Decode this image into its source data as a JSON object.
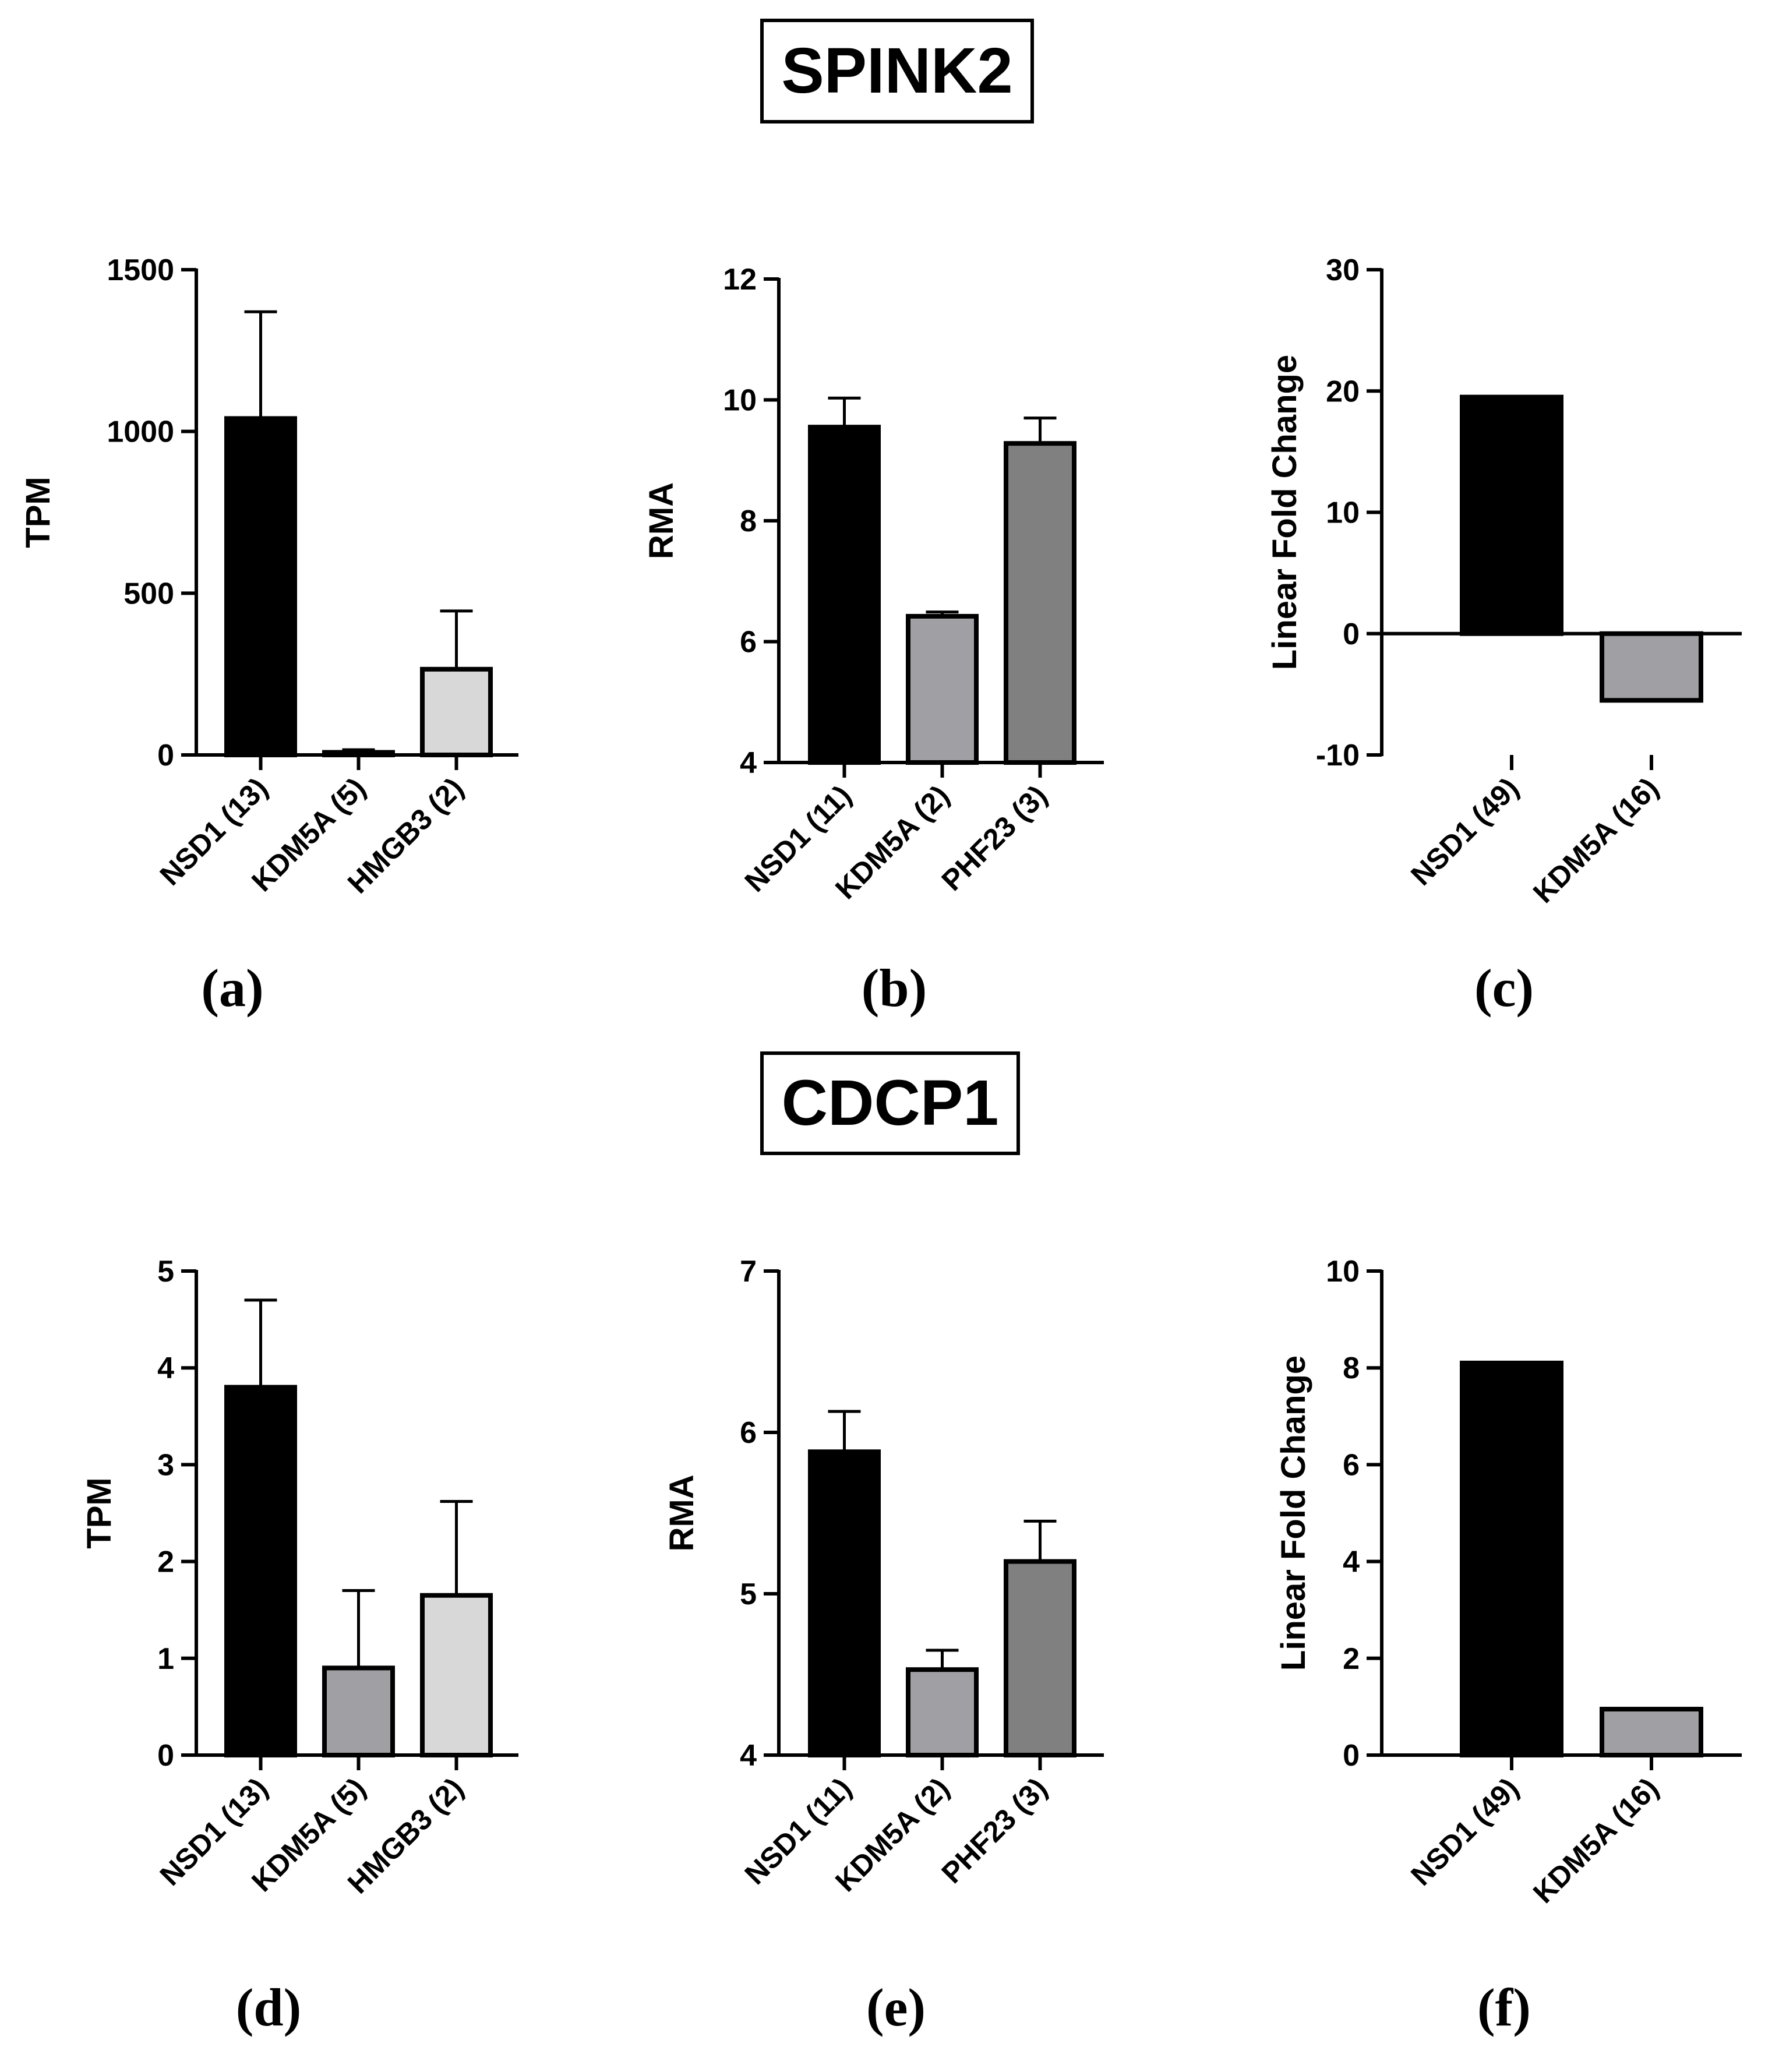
{
  "titles": {
    "top": "SPINK2",
    "bottom": "CDCP1"
  },
  "chart_data": [
    {
      "type": "bar",
      "panel": "(a)",
      "ylabel": "TPM",
      "ylim": [
        0,
        1500
      ],
      "yticks": [
        0,
        500,
        1000,
        1500
      ],
      "categories": [
        "NSD1 (13)",
        "KDM5A (5)",
        "HMGB3 (2)"
      ],
      "values": [
        1040,
        8,
        265
      ],
      "errors": [
        330,
        8,
        180
      ],
      "colors": [
        "#000000",
        "#a0a0a4",
        "#d8d8d8"
      ]
    },
    {
      "type": "bar",
      "panel": "(b)",
      "ylabel": "RMA",
      "ylim": [
        4,
        12
      ],
      "yticks": [
        4,
        6,
        8,
        10,
        12
      ],
      "categories": [
        "NSD1 (11)",
        "KDM5A (2)",
        "PHF23 (3)"
      ],
      "values": [
        9.55,
        6.42,
        9.28
      ],
      "errors": [
        0.48,
        0.07,
        0.42
      ],
      "colors": [
        "#000000",
        "#a0a0a4",
        "#808080"
      ]
    },
    {
      "type": "bar",
      "panel": "(c)",
      "ylabel": "Linear Fold Change",
      "ylim": [
        -10,
        30
      ],
      "yticks": [
        -10,
        0,
        10,
        20,
        30
      ],
      "categories": [
        "NSD1 (49)",
        "KDM5A (16)"
      ],
      "values": [
        19.5,
        -5.5
      ],
      "errors": [
        0,
        0
      ],
      "colors": [
        "#000000",
        "#a0a0a4"
      ]
    },
    {
      "type": "bar",
      "panel": "(d)",
      "ylabel": "TPM",
      "ylim": [
        0,
        5
      ],
      "yticks": [
        0,
        1,
        2,
        3,
        4,
        5
      ],
      "categories": [
        "NSD1 (13)",
        "KDM5A (5)",
        "HMGB3 (2)"
      ],
      "values": [
        3.8,
        0.9,
        1.65
      ],
      "errors": [
        0.9,
        0.8,
        0.97
      ],
      "colors": [
        "#000000",
        "#a0a0a4",
        "#d8d8d8"
      ]
    },
    {
      "type": "bar",
      "panel": "(e)",
      "ylabel": "RMA",
      "ylim": [
        4,
        7
      ],
      "yticks": [
        4,
        5,
        6,
        7
      ],
      "categories": [
        "NSD1 (11)",
        "KDM5A (2)",
        "PHF23 (3)"
      ],
      "values": [
        5.88,
        4.53,
        5.2
      ],
      "errors": [
        0.25,
        0.12,
        0.25
      ],
      "colors": [
        "#000000",
        "#a0a0a4",
        "#808080"
      ]
    },
    {
      "type": "bar",
      "panel": "(f)",
      "ylabel": "Linear Fold Change",
      "ylim": [
        0,
        10
      ],
      "yticks": [
        0,
        2,
        4,
        6,
        8,
        10
      ],
      "categories": [
        "NSD1 (49)",
        "KDM5A (16)"
      ],
      "values": [
        8.1,
        0.95
      ],
      "errors": [
        0,
        0
      ],
      "colors": [
        "#000000",
        "#a0a0a4"
      ]
    }
  ]
}
